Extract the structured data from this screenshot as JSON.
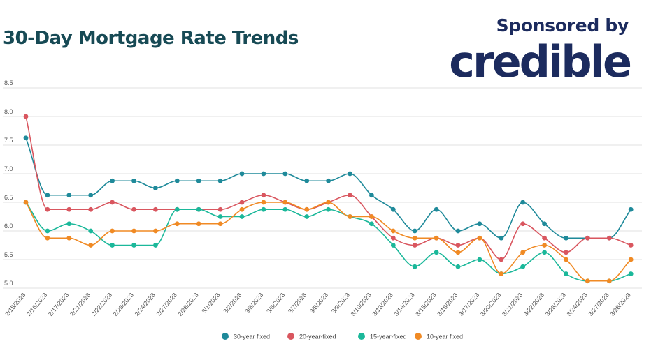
{
  "header": {
    "title": "30-Day Mortgage Rate Trends",
    "sponsor_label": "Sponsored by",
    "sponsor_logo": "credible"
  },
  "colors": {
    "title": "#174a55",
    "sponsor": "#1c2b5e",
    "grid": "#e2e2e2"
  },
  "chart_data": {
    "type": "line",
    "xlabel": "",
    "ylabel": "",
    "ylim": [
      5.0,
      8.5
    ],
    "yticks": [
      "5.0",
      "5.5",
      "6.0",
      "6.5",
      "7.0",
      "7.5",
      "8.0",
      "8.5"
    ],
    "grid": true,
    "legend_position": "bottom-center",
    "categories": [
      "2/15/2023",
      "2/16/2023",
      "2/17/2023",
      "2/21/2023",
      "2/22/2023",
      "2/23/2023",
      "2/24/2023",
      "2/27/2023",
      "2/28/2023",
      "3/1/2023",
      "3/2/2023",
      "3/3/2023",
      "3/6/2023",
      "3/7/2023",
      "3/8/2023",
      "3/9/2023",
      "3/10/2023",
      "3/13/2023",
      "3/14/2023",
      "3/15/2023",
      "3/16/2023",
      "3/17/2023",
      "3/20/2023",
      "3/21/2023",
      "3/22/2023",
      "3/23/2023",
      "3/24/2023",
      "3/27/2023",
      "3/28/2023"
    ],
    "series": [
      {
        "name": "30-year fixed",
        "color": "#1f8a9a",
        "values": [
          7.625,
          6.625,
          6.625,
          6.625,
          6.875,
          6.875,
          6.75,
          6.875,
          6.875,
          6.875,
          7.0,
          7.0,
          7.0,
          6.875,
          6.875,
          7.0,
          6.625,
          6.375,
          6.0,
          6.375,
          6.0,
          6.125,
          5.875,
          6.5,
          6.125,
          5.875,
          5.875,
          5.875,
          6.375
        ]
      },
      {
        "name": "20-year-fixed",
        "color": "#d9565f",
        "values": [
          8.0,
          6.375,
          6.375,
          6.375,
          6.5,
          6.375,
          6.375,
          6.375,
          6.375,
          6.375,
          6.5,
          6.625,
          6.5,
          6.375,
          6.5,
          6.625,
          6.25,
          5.875,
          5.75,
          5.875,
          5.75,
          5.875,
          5.5,
          6.125,
          5.875,
          5.625,
          5.875,
          5.875,
          5.75
        ]
      },
      {
        "name": "15-year-fixed",
        "color": "#1bb89a",
        "values": [
          6.5,
          6.0,
          6.125,
          6.0,
          5.75,
          5.75,
          5.75,
          6.375,
          6.375,
          6.25,
          6.25,
          6.375,
          6.375,
          6.25,
          6.375,
          6.25,
          6.125,
          5.75,
          5.375,
          5.625,
          5.375,
          5.5,
          5.25,
          5.375,
          5.625,
          5.25,
          5.125,
          5.125,
          5.25
        ]
      },
      {
        "name": "10-year fixed",
        "color": "#f08a24",
        "values": [
          6.5,
          5.875,
          5.875,
          5.75,
          6.0,
          6.0,
          6.0,
          6.125,
          6.125,
          6.125,
          6.375,
          6.5,
          6.5,
          6.375,
          6.5,
          6.25,
          6.25,
          6.0,
          5.875,
          5.875,
          5.625,
          5.875,
          5.25,
          5.625,
          5.75,
          5.5,
          5.125,
          5.125,
          5.5
        ]
      }
    ]
  }
}
